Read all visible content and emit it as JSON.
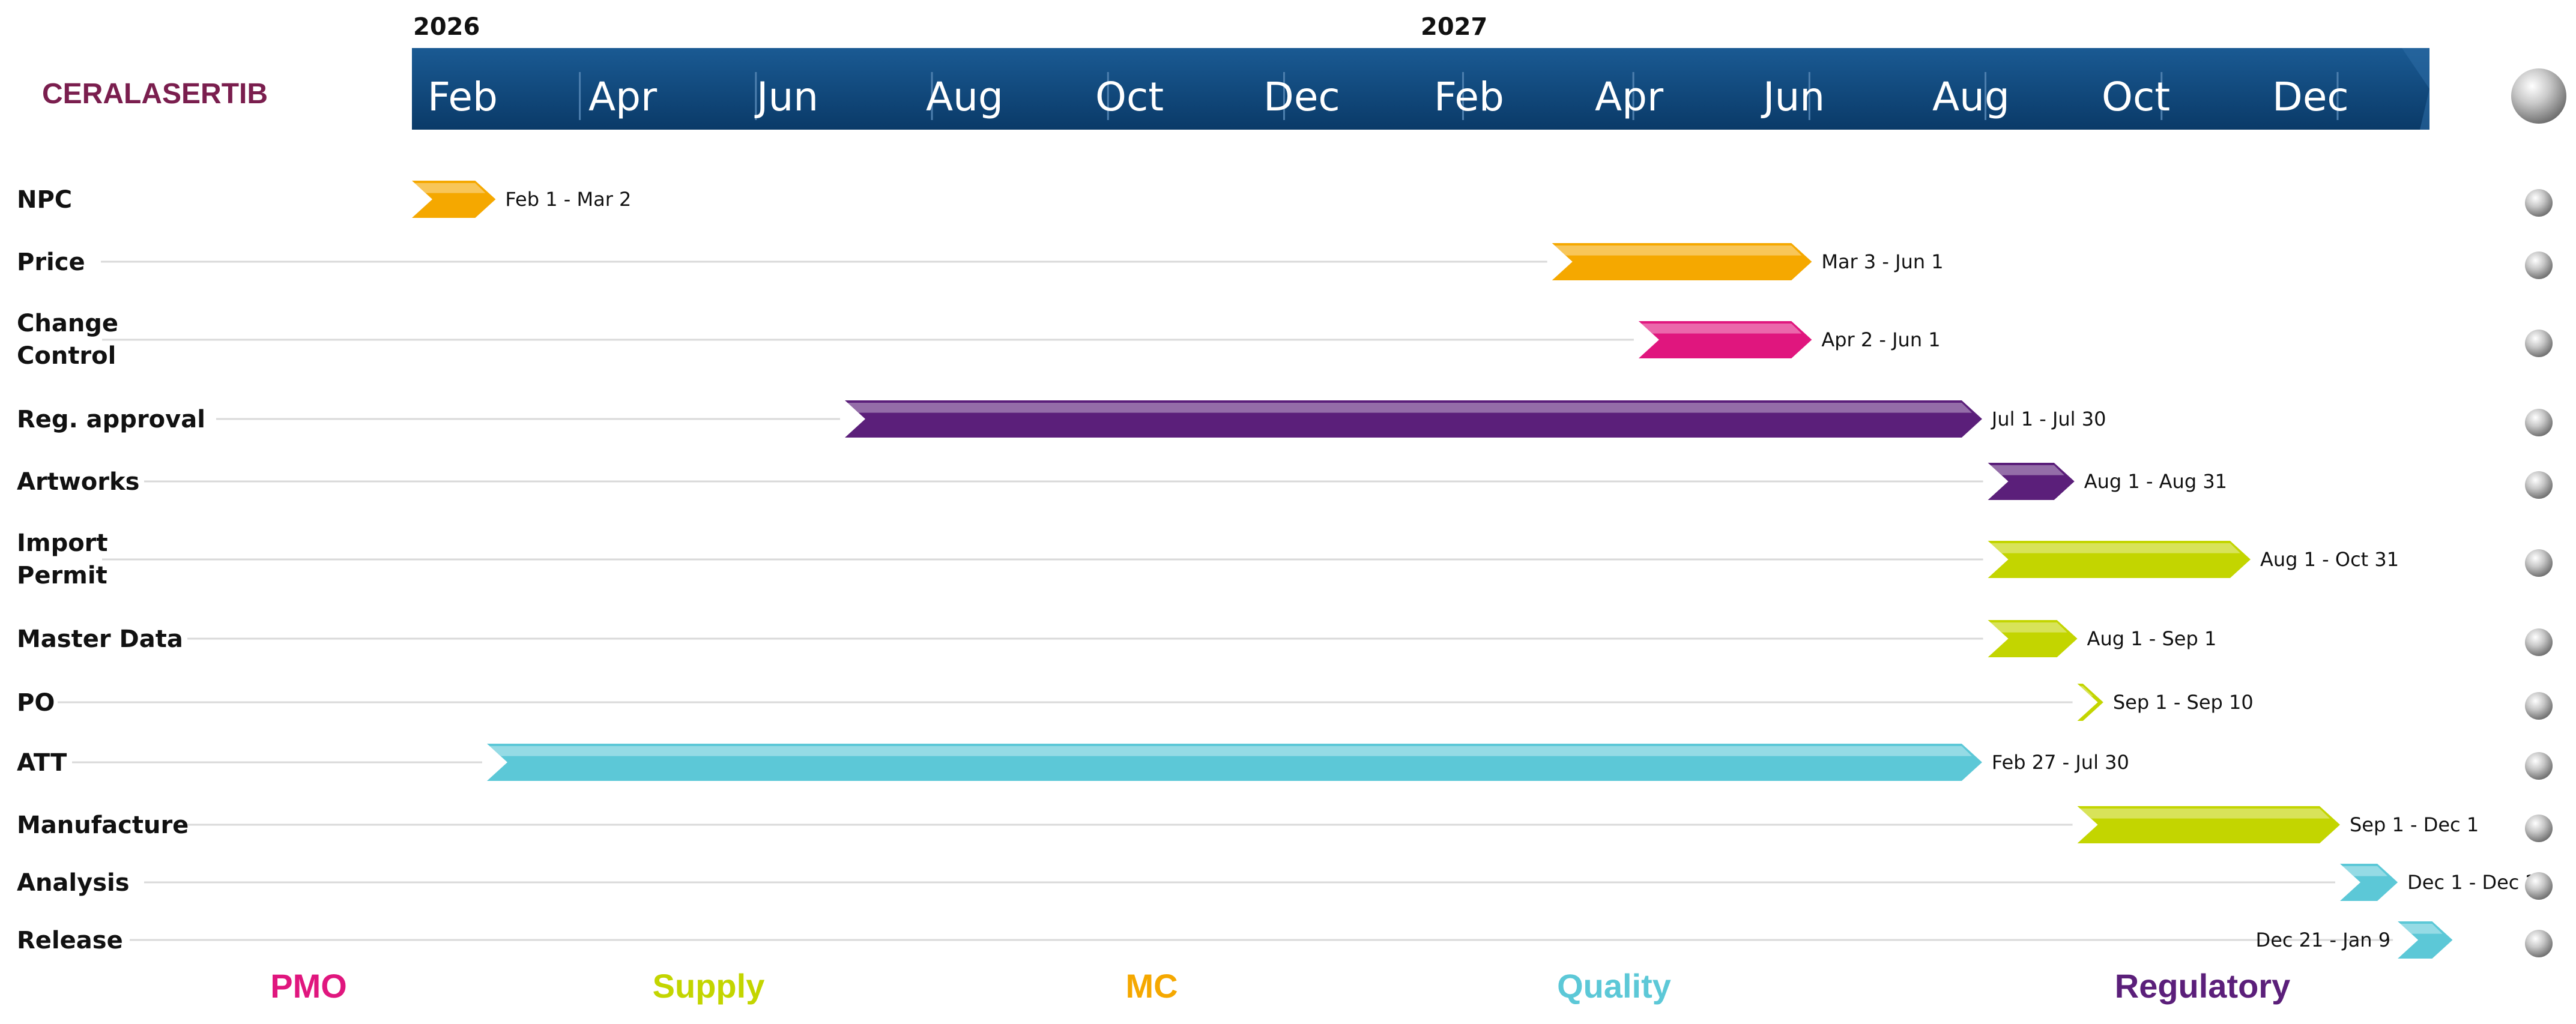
{
  "chart_data": {
    "type": "gantt",
    "title": "CERALASERTIB",
    "timeline": {
      "years": [
        "2026",
        "2027"
      ],
      "months": [
        "Feb",
        "Apr",
        "Jun",
        "Aug",
        "Oct",
        "Dec",
        "Feb",
        "Apr",
        "Jun",
        "Aug",
        "Oct",
        "Dec"
      ],
      "start": "2026-02-01",
      "end": "2027-12-31"
    },
    "tasks": [
      {
        "name": "NPC",
        "start": "2026-02-01",
        "end": "2026-03-02",
        "label": "Feb 1 - Mar 2",
        "category": "MC"
      },
      {
        "name": "Price",
        "start": "2027-03-03",
        "end": "2027-06-01",
        "label": "Mar 3 - Jun 1",
        "category": "MC"
      },
      {
        "name": "Change Control",
        "start": "2027-04-02",
        "end": "2027-06-01",
        "label": "Apr 2 - Jun 1",
        "category": "PMO"
      },
      {
        "name": "Reg. approval",
        "start": "2026-07-01",
        "end": "2027-07-30",
        "label": "Jul 1 - Jul 30",
        "category": "Regulatory"
      },
      {
        "name": "Artworks",
        "start": "2027-08-01",
        "end": "2027-08-31",
        "label": "Aug 1 - Aug 31",
        "category": "Regulatory"
      },
      {
        "name": "Import Permit",
        "start": "2027-08-01",
        "end": "2027-10-31",
        "label": "Aug 1 - Oct 31",
        "category": "Supply"
      },
      {
        "name": "Master Data",
        "start": "2027-08-01",
        "end": "2027-09-01",
        "label": "Aug 1 - Sep 1",
        "category": "Supply"
      },
      {
        "name": "PO",
        "start": "2027-09-01",
        "end": "2027-09-10",
        "label": "Sep 1 - Sep 10",
        "category": "Supply"
      },
      {
        "name": "ATT",
        "start": "2026-02-27",
        "end": "2027-07-30",
        "label": "Feb 27 - Jul 30",
        "category": "Quality"
      },
      {
        "name": "Manufacture",
        "start": "2027-09-01",
        "end": "2027-12-01",
        "label": "Sep 1 - Dec 1",
        "category": "Supply"
      },
      {
        "name": "Analysis",
        "start": "2027-12-01",
        "end": "2027-12-21",
        "label": "Dec 1 - Dec 21",
        "category": "Quality"
      },
      {
        "name": "Release",
        "start": "2027-12-21",
        "end": "2028-01-09",
        "label": "Dec 21 - Jan 9",
        "category": "Quality"
      }
    ],
    "legend": [
      {
        "name": "PMO",
        "color": "#e0167e"
      },
      {
        "name": "Supply",
        "color": "#c3d500"
      },
      {
        "name": "MC",
        "color": "#f5a800"
      },
      {
        "name": "Quality",
        "color": "#5cc8d7"
      },
      {
        "name": "Regulatory",
        "color": "#5b1f7a"
      }
    ],
    "colors": {
      "title": "#7a1e4e",
      "header_band": "#0d4477",
      "guide_line": "#d9d9d9"
    }
  }
}
